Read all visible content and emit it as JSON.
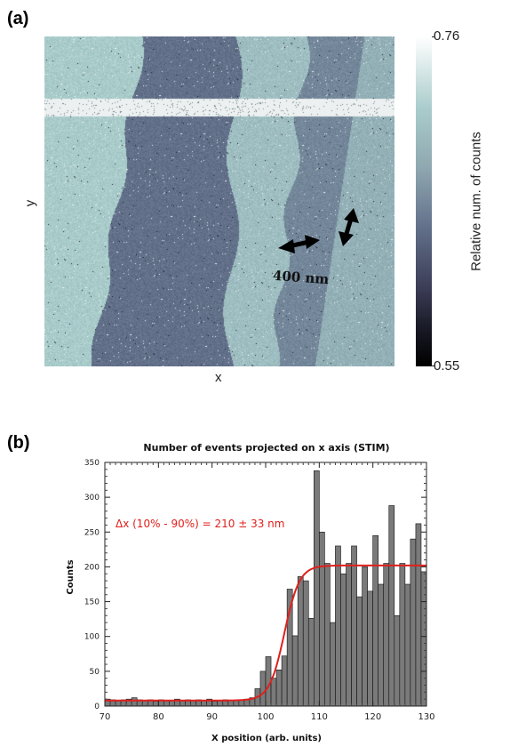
{
  "panel_a": {
    "label": "(a)",
    "xlabel": "x",
    "ylabel": "y",
    "colorbar": {
      "max": "0.76",
      "min": "0.55",
      "label": "Relative num. of counts"
    },
    "scale_label": "400 nm"
  },
  "panel_b": {
    "label": "(b)"
  },
  "chart_data": {
    "type": "bar",
    "title": "Number of events projected on x axis (STIM)",
    "xlabel": "X position (arb. units)",
    "ylabel": "Counts",
    "xlim": [
      70,
      130
    ],
    "ylim": [
      0,
      350
    ],
    "xticks": [
      70,
      80,
      90,
      100,
      110,
      120,
      130
    ],
    "yticks": [
      0,
      50,
      100,
      150,
      200,
      250,
      300,
      350
    ],
    "annotation": "Δx (10% - 90%) = 210 ± 33 nm",
    "bar_color": "#7a7a7a",
    "fit_color": "#e0201c",
    "bins_start": 70,
    "bin_width": 1,
    "values": [
      10,
      9,
      8,
      9,
      10,
      12,
      9,
      8,
      9,
      7,
      9,
      8,
      8,
      10,
      8,
      9,
      8,
      9,
      8,
      10,
      7,
      8,
      9,
      8,
      8,
      9,
      10,
      12,
      25,
      50,
      71,
      40,
      52,
      72,
      168,
      101,
      186,
      180,
      126,
      338,
      250,
      205,
      120,
      230,
      190,
      205,
      230,
      157,
      200,
      165,
      245,
      175,
      205,
      288,
      130,
      205,
      175,
      240,
      262,
      193
    ],
    "fit": {
      "base": 8,
      "top": 202,
      "center": 103.5,
      "width": 1.4
    }
  }
}
